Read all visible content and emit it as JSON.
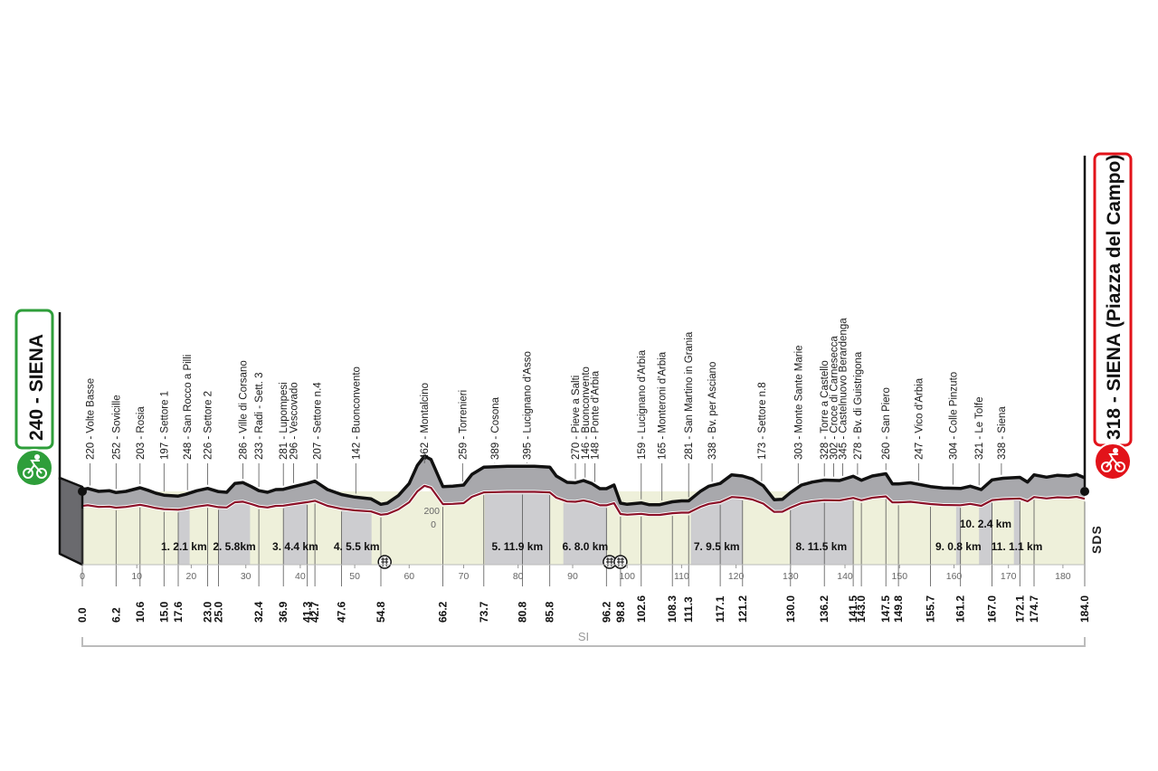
{
  "start": {
    "altitude": "240",
    "name": "SIENA",
    "color": "#2e9e3a"
  },
  "finish": {
    "altitude": "318",
    "name": "SIENA",
    "subtitle": "(Piazza del Campo)",
    "color": "#e2131a"
  },
  "brand": "SDS",
  "section_label": "SI",
  "icons": {
    "start": "cyclist-icon",
    "finish": "cyclist-icon",
    "sprint": "intermediate-sprint-icon"
  },
  "colors": {
    "profile_fill": "#a8a8ac",
    "profile_line": "#111111",
    "inner_line": "#8b1027",
    "ground": "#eef0da",
    "ground_gravel": "#cdcdd0"
  },
  "chart_data": {
    "type": "area",
    "title": "",
    "xlabel": "",
    "ylabel": "",
    "xlim": [
      0,
      184
    ],
    "x_ticks": [
      0,
      10,
      20,
      30,
      40,
      50,
      60,
      70,
      80,
      90,
      100,
      110,
      120,
      130,
      140,
      150,
      160,
      170,
      180
    ],
    "y_ticks": [
      200,
      0
    ],
    "profile": [
      [
        0,
        240
      ],
      [
        1,
        247
      ],
      [
        3,
        228
      ],
      [
        5,
        232
      ],
      [
        6.2,
        220
      ],
      [
        8,
        228
      ],
      [
        10.6,
        252
      ],
      [
        12,
        236
      ],
      [
        13.5,
        216
      ],
      [
        15,
        203
      ],
      [
        17.6,
        197
      ],
      [
        19,
        209
      ],
      [
        21,
        232
      ],
      [
        23,
        248
      ],
      [
        25,
        226
      ],
      [
        26.5,
        222
      ],
      [
        28,
        280
      ],
      [
        29.5,
        286
      ],
      [
        31,
        260
      ],
      [
        32.4,
        233
      ],
      [
        34,
        222
      ],
      [
        35.5,
        240
      ],
      [
        36.9,
        242
      ],
      [
        38.3,
        255
      ],
      [
        41.3,
        281
      ],
      [
        42.7,
        296
      ],
      [
        45,
        240
      ],
      [
        47.6,
        207
      ],
      [
        50,
        190
      ],
      [
        53,
        178
      ],
      [
        54.8,
        142
      ],
      [
        56,
        150
      ],
      [
        58,
        200
      ],
      [
        60,
        280
      ],
      [
        61.5,
        400
      ],
      [
        62.8,
        462
      ],
      [
        64,
        440
      ],
      [
        66.2,
        259
      ],
      [
        68,
        262
      ],
      [
        70,
        270
      ],
      [
        71.5,
        340
      ],
      [
        73.7,
        389
      ],
      [
        76,
        392
      ],
      [
        78,
        395
      ],
      [
        80.8,
        395
      ],
      [
        83,
        395
      ],
      [
        85.8,
        389
      ],
      [
        87,
        330
      ],
      [
        89,
        288
      ],
      [
        90.5,
        285
      ],
      [
        92,
        300
      ],
      [
        93.5,
        280
      ],
      [
        95,
        246
      ],
      [
        96.2,
        246
      ],
      [
        97.6,
        270
      ],
      [
        98.8,
        150
      ],
      [
        100,
        142
      ],
      [
        102.6,
        152
      ],
      [
        104,
        140
      ],
      [
        106,
        140
      ],
      [
        108.3,
        159
      ],
      [
        110,
        165
      ],
      [
        111.3,
        165
      ],
      [
        113.5,
        230
      ],
      [
        115,
        262
      ],
      [
        117.1,
        281
      ],
      [
        119.2,
        338
      ],
      [
        121.2,
        330
      ],
      [
        123,
        310
      ],
      [
        125,
        265
      ],
      [
        127,
        173
      ],
      [
        128.5,
        175
      ],
      [
        130,
        220
      ],
      [
        132,
        270
      ],
      [
        134,
        290
      ],
      [
        136.2,
        303
      ],
      [
        139,
        300
      ],
      [
        141.5,
        328
      ],
      [
        143,
        302
      ],
      [
        145,
        330
      ],
      [
        147.5,
        345
      ],
      [
        148.7,
        278
      ],
      [
        149.8,
        278
      ],
      [
        152,
        285
      ],
      [
        155.7,
        260
      ],
      [
        158,
        250
      ],
      [
        161.2,
        247
      ],
      [
        163,
        262
      ],
      [
        165,
        240
      ],
      [
        167,
        304
      ],
      [
        169,
        315
      ],
      [
        172.1,
        321
      ],
      [
        173.5,
        290
      ],
      [
        174.7,
        338
      ],
      [
        177,
        322
      ],
      [
        179,
        335
      ],
      [
        181,
        330
      ],
      [
        182.5,
        340
      ],
      [
        184,
        318
      ]
    ],
    "km_markers": [
      {
        "km": "0.0",
        "x": 0
      },
      {
        "km": "6.2",
        "x": 6.2
      },
      {
        "km": "10.6",
        "x": 10.6
      },
      {
        "km": "15.0",
        "x": 15.0
      },
      {
        "km": "17.6",
        "x": 17.6
      },
      {
        "km": "23.0",
        "x": 23.0
      },
      {
        "km": "25.0",
        "x": 25.0
      },
      {
        "km": "32.4",
        "x": 32.4
      },
      {
        "km": "36.9",
        "x": 36.9
      },
      {
        "km": "41.3",
        "x": 41.3
      },
      {
        "km": "42.7",
        "x": 42.7
      },
      {
        "km": "47.6",
        "x": 47.6
      },
      {
        "km": "54.8",
        "x": 54.8
      },
      {
        "km": "66.2",
        "x": 66.2
      },
      {
        "km": "73.7",
        "x": 73.7
      },
      {
        "km": "80.8",
        "x": 80.8
      },
      {
        "km": "85.8",
        "x": 85.8
      },
      {
        "km": "96.2",
        "x": 96.2
      },
      {
        "km": "98.8",
        "x": 98.8
      },
      {
        "km": "102.6",
        "x": 102.6
      },
      {
        "km": "108.3",
        "x": 108.3
      },
      {
        "km": "111.3",
        "x": 111.3
      },
      {
        "km": "117.1",
        "x": 117.1
      },
      {
        "km": "121.2",
        "x": 121.2
      },
      {
        "km": "130.0",
        "x": 130.0
      },
      {
        "km": "136.2",
        "x": 136.2
      },
      {
        "km": "141.5",
        "x": 141.5
      },
      {
        "km": "143.0",
        "x": 143.0
      },
      {
        "km": "147.5",
        "x": 147.5
      },
      {
        "km": "149.8",
        "x": 149.8
      },
      {
        "km": "155.7",
        "x": 155.7
      },
      {
        "km": "161.2",
        "x": 161.2
      },
      {
        "km": "167.0",
        "x": 167.0
      },
      {
        "km": "172.1",
        "x": 172.1
      },
      {
        "km": "174.7",
        "x": 174.7
      },
      {
        "km": "184.0",
        "x": 184
      }
    ],
    "waypoints": [
      {
        "label": "220 - Volte Basse",
        "x": 1.4
      },
      {
        "label": "252 - Sovicille",
        "x": 6.2
      },
      {
        "label": "203 - Rosia",
        "x": 10.6
      },
      {
        "label": "197 - Settore 1",
        "x": 15.0
      },
      {
        "label": "248 - San Rocco a Pilli",
        "x": 19.3
      },
      {
        "label": "226 - Settore 2",
        "x": 23.0
      },
      {
        "label": "286 - Ville di Corsano",
        "x": 29.5
      },
      {
        "label": "233 - Radi - Sett. 3",
        "x": 32.4
      },
      {
        "label": "281 - Lupompesi",
        "x": 36.9
      },
      {
        "label": "296 - Vescovado",
        "x": 38.8
      },
      {
        "label": "207 - Settore n.4",
        "x": 43.1
      },
      {
        "label": "142 - Buonconvento",
        "x": 50.2
      },
      {
        "label": "462 - Montalcino",
        "x": 62.8
      },
      {
        "label": "259 - Torrenieri",
        "x": 69.8
      },
      {
        "label": "389 - Cosona",
        "x": 75.7
      },
      {
        "label": "395 - Lucignano d'Asso",
        "x": 81.6
      },
      {
        "label": "270 - Pieve a Salti",
        "x": 90.5
      },
      {
        "label": "146 - Buonconvento",
        "x": 92.3
      },
      {
        "label": "148 - Ponte d'Arbia",
        "x": 94.1
      },
      {
        "label": "159 - Lucignano d'Arbia",
        "x": 102.6
      },
      {
        "label": "165 - Monteroni d'Arbia",
        "x": 106.4
      },
      {
        "label": "281 - San Martino in Grania",
        "x": 111.3
      },
      {
        "label": "338 - Bv. per Asciano",
        "x": 115.6
      },
      {
        "label": "173 - Settore n.8",
        "x": 124.7
      },
      {
        "label": "303 - Monte Sante Marie",
        "x": 131.4
      },
      {
        "label": "328 - Torre a Castello",
        "x": 136.2
      },
      {
        "label": "302 - Croce di Carnesecca",
        "x": 137.9
      },
      {
        "label": "345 - Castelnuovo Berardenga",
        "x": 139.6
      },
      {
        "label": "278 - Bv. di Guistrigona",
        "x": 142.3
      },
      {
        "label": "260 - San Piero",
        "x": 147.5
      },
      {
        "label": "247 - Vico d'Arbia",
        "x": 153.5
      },
      {
        "label": "304 - Colle Pinzuto",
        "x": 159.8
      },
      {
        "label": "321 - Le Tolfe",
        "x": 164.6
      },
      {
        "label": "338 - Siena",
        "x": 168.7
      }
    ],
    "sectors": [
      {
        "label": "1. 2.1 km",
        "x0": 17.6,
        "x1": 19.7
      },
      {
        "label": "2. 5.8km",
        "x0": 25.0,
        "x1": 30.8
      },
      {
        "label": "3. 4.4 km",
        "x0": 36.9,
        "x1": 41.3
      },
      {
        "label": "4. 5.5 km",
        "x0": 47.6,
        "x1": 53.1
      },
      {
        "label": "5. 11.9 km",
        "x0": 73.9,
        "x1": 85.8
      },
      {
        "label": "6. 8.0 km",
        "x0": 88.3,
        "x1": 96.3
      },
      {
        "label": "7. 9.5 km",
        "x0": 111.7,
        "x1": 121.2
      },
      {
        "label": "8. 11.5 km",
        "x0": 129.9,
        "x1": 141.4
      },
      {
        "label": "9. 0.8 km",
        "x0": 160.4,
        "x1": 161.2
      },
      {
        "label": "10. 2.4 km",
        "x0": 164.6,
        "x1": 167.0
      },
      {
        "label": "11. 1.1 km",
        "x0": 171.0,
        "x1": 172.1
      }
    ],
    "sprints": [
      55.5,
      96.8,
      98.8
    ]
  }
}
